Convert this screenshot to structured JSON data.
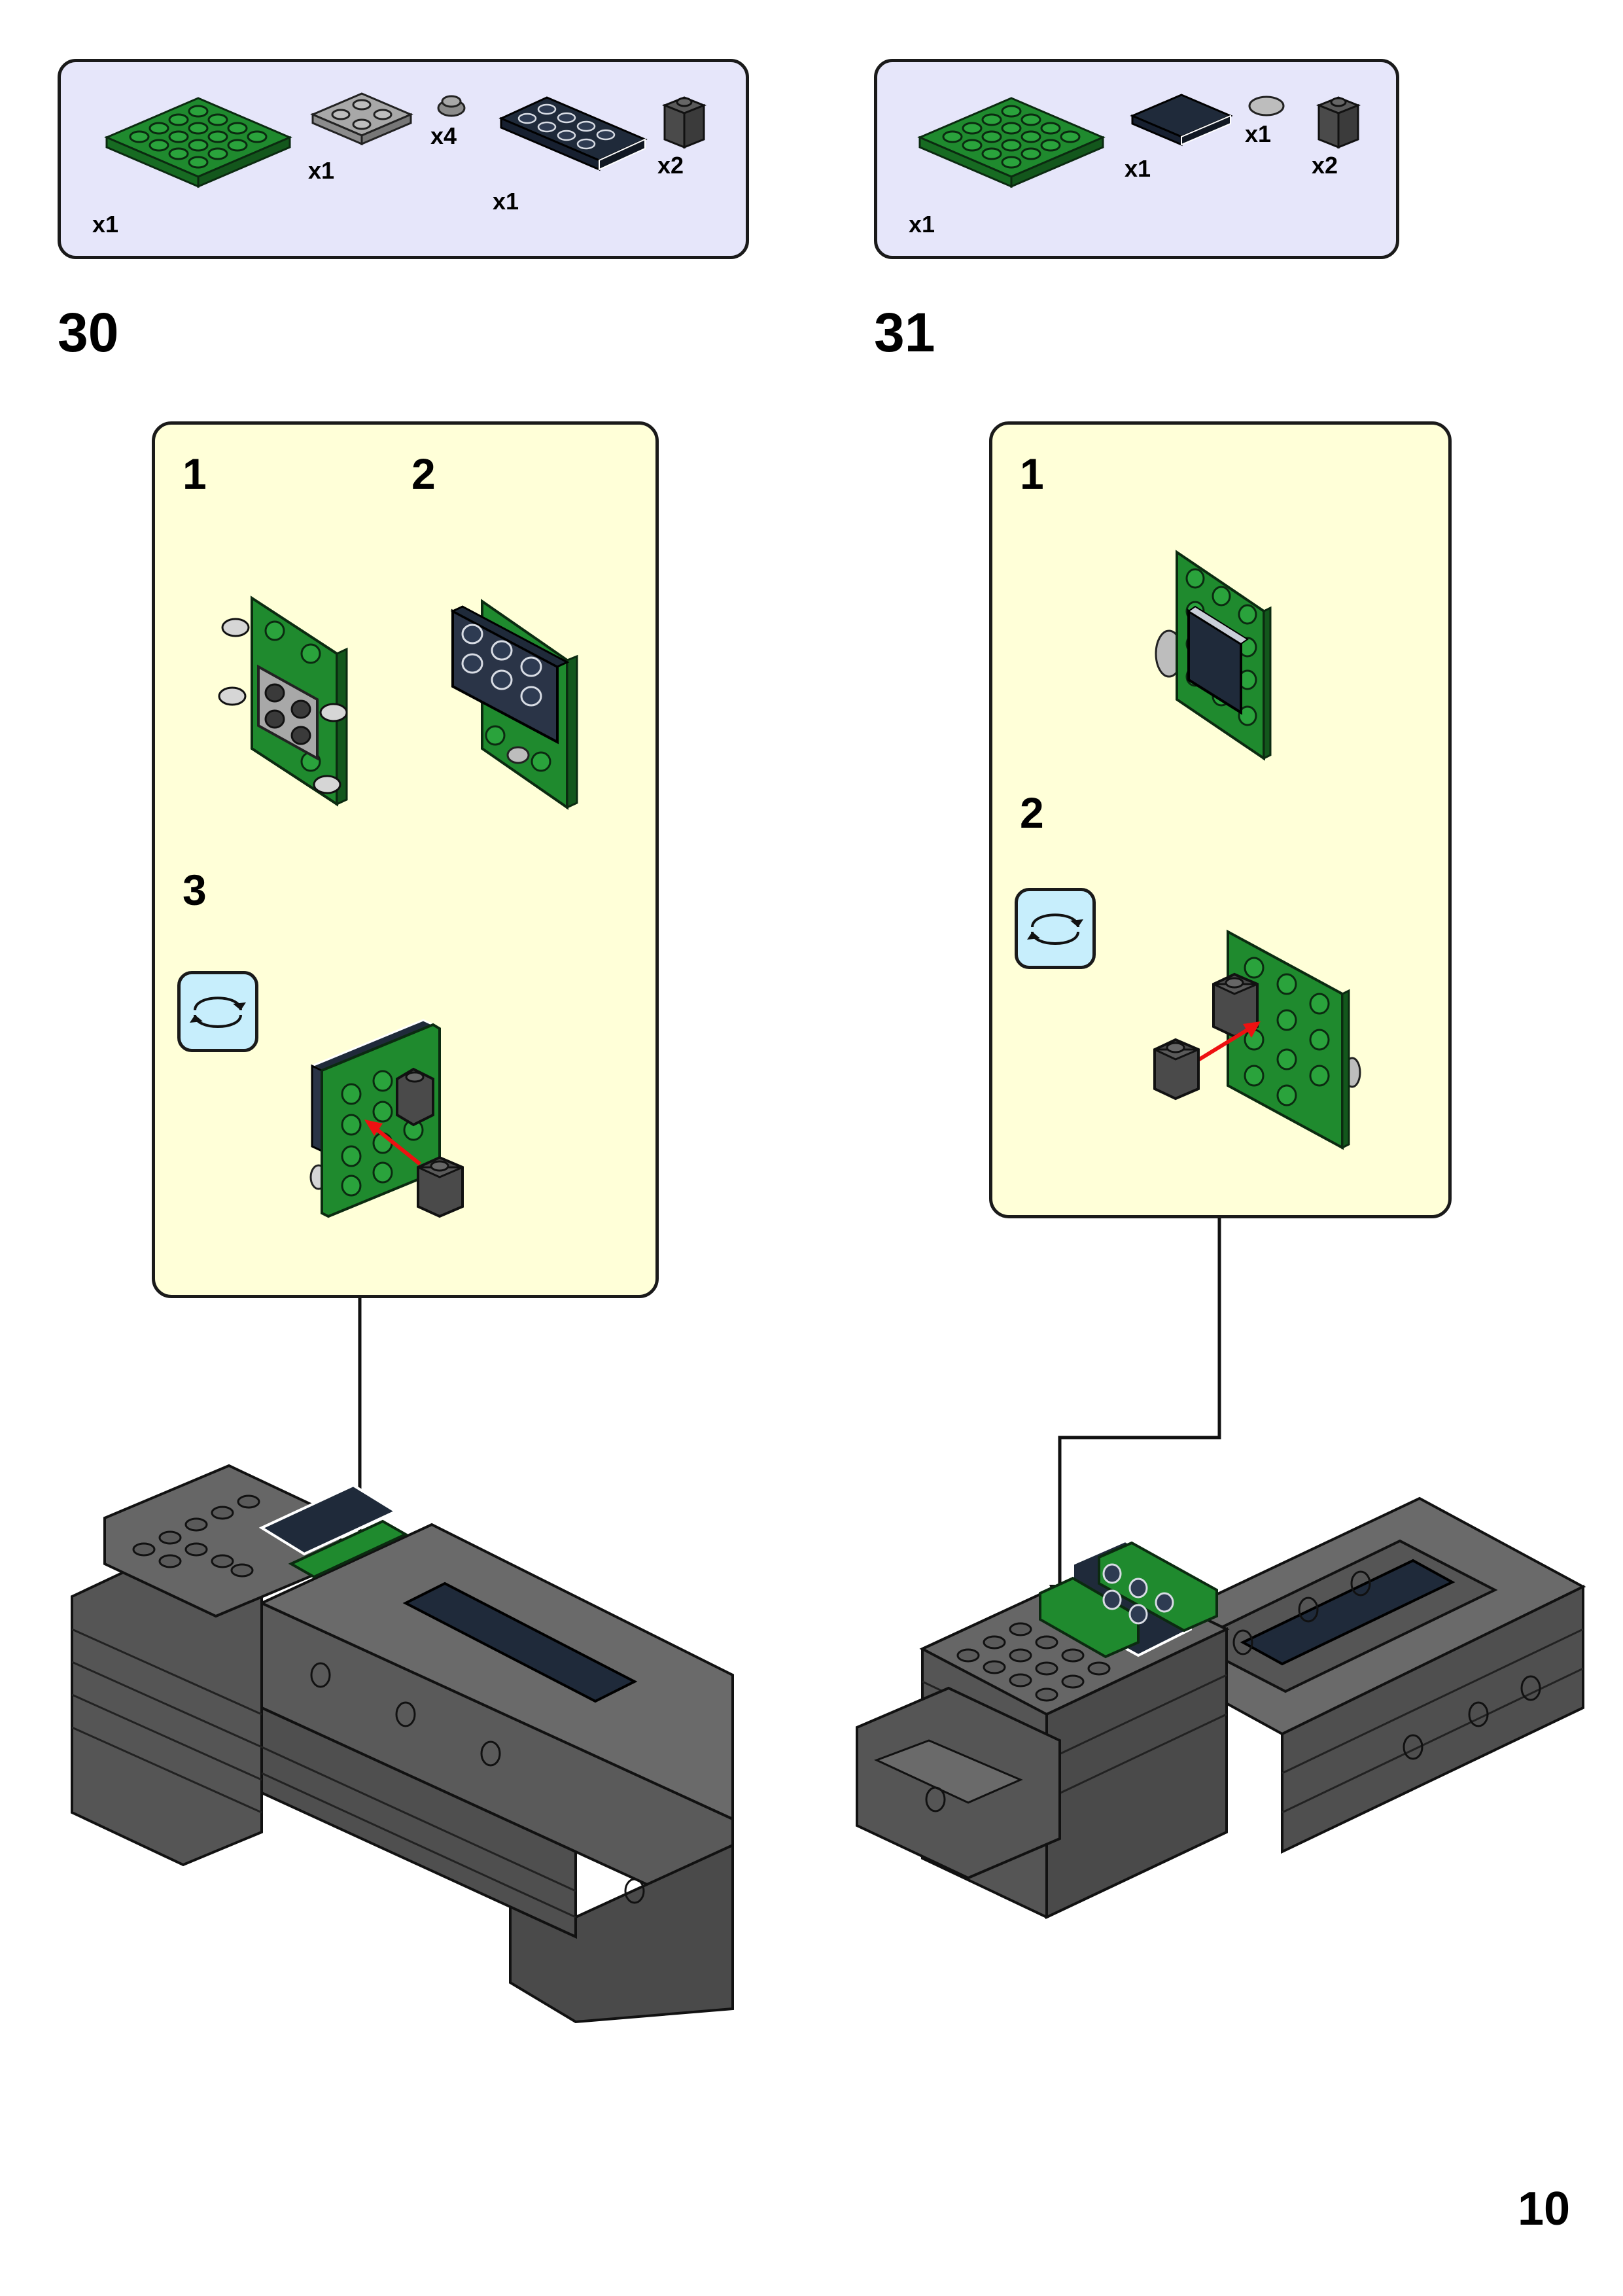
{
  "steps": [
    {
      "number": "30",
      "parts": [
        {
          "name": "green-plate-4x4",
          "qty": "x1"
        },
        {
          "name": "gray-plate-2x2",
          "qty": "x1"
        },
        {
          "name": "gray-round-plate",
          "qty": "x4"
        },
        {
          "name": "dark-plate-2x4",
          "qty": "x1"
        },
        {
          "name": "dark-brick-1x1",
          "qty": "x2"
        }
      ],
      "substeps": [
        "1",
        "2",
        "3"
      ]
    },
    {
      "number": "31",
      "parts": [
        {
          "name": "green-plate-4x4",
          "qty": "x1"
        },
        {
          "name": "dark-tile-2x2",
          "qty": "x1"
        },
        {
          "name": "gray-round-tile",
          "qty": "x1"
        },
        {
          "name": "dark-brick-1x1",
          "qty": "x2"
        }
      ],
      "substeps": [
        "1",
        "2"
      ]
    }
  ],
  "page_number": "10",
  "colors": {
    "green": "#1f8a2e",
    "dark_gray": "#5a5a5a",
    "navy": "#1f2a3a",
    "light_gray": "#a8a8a8",
    "parts_bg": "#e6e6fa",
    "substep_bg": "#ffffd8",
    "rotate_bg": "#c7eefc",
    "arrow_red": "#ee1111"
  },
  "icons": [
    "rotate-icon"
  ]
}
